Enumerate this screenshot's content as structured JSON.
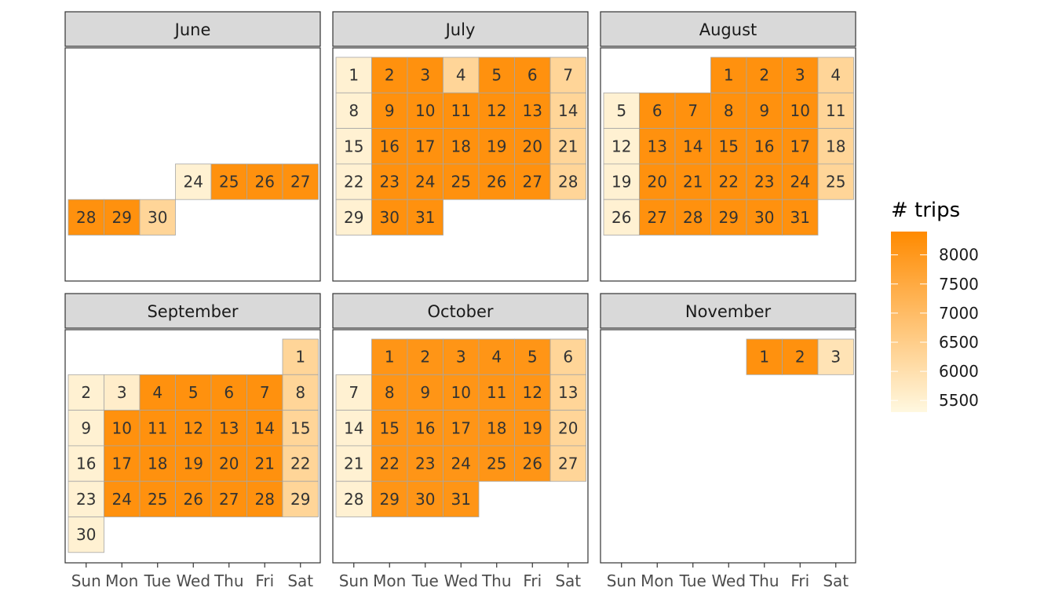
{
  "chart_data": {
    "type": "heatmap",
    "legend": {
      "title": "# trips",
      "ticks": [
        8000,
        7500,
        7000,
        6500,
        6000,
        5500
      ],
      "range": [
        5300,
        8400
      ],
      "colors": [
        "#FFF8E0",
        "#FF8A00"
      ],
      "position": "right"
    },
    "weekdays": [
      "Sun",
      "Mon",
      "Tue",
      "Wed",
      "Thu",
      "Fri",
      "Sat"
    ],
    "months": [
      {
        "name": "June",
        "first_weekday": 1,
        "days": [
          {
            "day": 24,
            "trips": 5500
          },
          {
            "day": 25,
            "trips": 8200
          },
          {
            "day": 26,
            "trips": 8200
          },
          {
            "day": 27,
            "trips": 8200
          },
          {
            "day": 28,
            "trips": 8200
          },
          {
            "day": 29,
            "trips": 8200
          },
          {
            "day": 30,
            "trips": 6300
          }
        ]
      },
      {
        "name": "July",
        "first_weekday": 0,
        "days": [
          {
            "day": 1,
            "trips": 5500
          },
          {
            "day": 2,
            "trips": 8200
          },
          {
            "day": 3,
            "trips": 8200
          },
          {
            "day": 4,
            "trips": 6300
          },
          {
            "day": 5,
            "trips": 8200
          },
          {
            "day": 6,
            "trips": 8200
          },
          {
            "day": 7,
            "trips": 6300
          },
          {
            "day": 8,
            "trips": 5500
          },
          {
            "day": 9,
            "trips": 8200
          },
          {
            "day": 10,
            "trips": 8200
          },
          {
            "day": 11,
            "trips": 8200
          },
          {
            "day": 12,
            "trips": 8200
          },
          {
            "day": 13,
            "trips": 8200
          },
          {
            "day": 14,
            "trips": 6300
          },
          {
            "day": 15,
            "trips": 5500
          },
          {
            "day": 16,
            "trips": 8200
          },
          {
            "day": 17,
            "trips": 8200
          },
          {
            "day": 18,
            "trips": 8200
          },
          {
            "day": 19,
            "trips": 8200
          },
          {
            "day": 20,
            "trips": 8200
          },
          {
            "day": 21,
            "trips": 6300
          },
          {
            "day": 22,
            "trips": 5500
          },
          {
            "day": 23,
            "trips": 8200
          },
          {
            "day": 24,
            "trips": 8200
          },
          {
            "day": 25,
            "trips": 8200
          },
          {
            "day": 26,
            "trips": 8200
          },
          {
            "day": 27,
            "trips": 8200
          },
          {
            "day": 28,
            "trips": 6300
          },
          {
            "day": 29,
            "trips": 5500
          },
          {
            "day": 30,
            "trips": 8200
          },
          {
            "day": 31,
            "trips": 8200
          }
        ]
      },
      {
        "name": "August",
        "first_weekday": 3,
        "days": [
          {
            "day": 1,
            "trips": 8200
          },
          {
            "day": 2,
            "trips": 8200
          },
          {
            "day": 3,
            "trips": 8200
          },
          {
            "day": 4,
            "trips": 6300
          },
          {
            "day": 5,
            "trips": 5500
          },
          {
            "day": 6,
            "trips": 8200
          },
          {
            "day": 7,
            "trips": 8200
          },
          {
            "day": 8,
            "trips": 8200
          },
          {
            "day": 9,
            "trips": 8200
          },
          {
            "day": 10,
            "trips": 8200
          },
          {
            "day": 11,
            "trips": 6300
          },
          {
            "day": 12,
            "trips": 5500
          },
          {
            "day": 13,
            "trips": 8200
          },
          {
            "day": 14,
            "trips": 8200
          },
          {
            "day": 15,
            "trips": 8200
          },
          {
            "day": 16,
            "trips": 8200
          },
          {
            "day": 17,
            "trips": 8200
          },
          {
            "day": 18,
            "trips": 6300
          },
          {
            "day": 19,
            "trips": 5500
          },
          {
            "day": 20,
            "trips": 8200
          },
          {
            "day": 21,
            "trips": 8200
          },
          {
            "day": 22,
            "trips": 8200
          },
          {
            "day": 23,
            "trips": 8200
          },
          {
            "day": 24,
            "trips": 8200
          },
          {
            "day": 25,
            "trips": 6300
          },
          {
            "day": 26,
            "trips": 5500
          },
          {
            "day": 27,
            "trips": 8200
          },
          {
            "day": 28,
            "trips": 8200
          },
          {
            "day": 29,
            "trips": 8200
          },
          {
            "day": 30,
            "trips": 8200
          },
          {
            "day": 31,
            "trips": 8200
          }
        ]
      },
      {
        "name": "September",
        "first_weekday": 6,
        "days": [
          {
            "day": 1,
            "trips": 6300
          },
          {
            "day": 2,
            "trips": 5500
          },
          {
            "day": 3,
            "trips": 5600
          },
          {
            "day": 4,
            "trips": 8200
          },
          {
            "day": 5,
            "trips": 8200
          },
          {
            "day": 6,
            "trips": 8200
          },
          {
            "day": 7,
            "trips": 8200
          },
          {
            "day": 8,
            "trips": 6300
          },
          {
            "day": 9,
            "trips": 5500
          },
          {
            "day": 10,
            "trips": 8200
          },
          {
            "day": 11,
            "trips": 8200
          },
          {
            "day": 12,
            "trips": 8200
          },
          {
            "day": 13,
            "trips": 8200
          },
          {
            "day": 14,
            "trips": 8200
          },
          {
            "day": 15,
            "trips": 6300
          },
          {
            "day": 16,
            "trips": 5500
          },
          {
            "day": 17,
            "trips": 8200
          },
          {
            "day": 18,
            "trips": 8200
          },
          {
            "day": 19,
            "trips": 8200
          },
          {
            "day": 20,
            "trips": 8200
          },
          {
            "day": 21,
            "trips": 8200
          },
          {
            "day": 22,
            "trips": 6300
          },
          {
            "day": 23,
            "trips": 5500
          },
          {
            "day": 24,
            "trips": 8200
          },
          {
            "day": 25,
            "trips": 8200
          },
          {
            "day": 26,
            "trips": 8200
          },
          {
            "day": 27,
            "trips": 8200
          },
          {
            "day": 28,
            "trips": 8200
          },
          {
            "day": 29,
            "trips": 6300
          },
          {
            "day": 30,
            "trips": 5500
          }
        ]
      },
      {
        "name": "October",
        "first_weekday": 1,
        "days": [
          {
            "day": 1,
            "trips": 8100
          },
          {
            "day": 2,
            "trips": 8100
          },
          {
            "day": 3,
            "trips": 8100
          },
          {
            "day": 4,
            "trips": 8100
          },
          {
            "day": 5,
            "trips": 8100
          },
          {
            "day": 6,
            "trips": 6300
          },
          {
            "day": 7,
            "trips": 5500
          },
          {
            "day": 8,
            "trips": 8100
          },
          {
            "day": 9,
            "trips": 8100
          },
          {
            "day": 10,
            "trips": 8100
          },
          {
            "day": 11,
            "trips": 8100
          },
          {
            "day": 12,
            "trips": 8100
          },
          {
            "day": 13,
            "trips": 6300
          },
          {
            "day": 14,
            "trips": 5500
          },
          {
            "day": 15,
            "trips": 8100
          },
          {
            "day": 16,
            "trips": 8100
          },
          {
            "day": 17,
            "trips": 8100
          },
          {
            "day": 18,
            "trips": 8100
          },
          {
            "day": 19,
            "trips": 8100
          },
          {
            "day": 20,
            "trips": 6300
          },
          {
            "day": 21,
            "trips": 5500
          },
          {
            "day": 22,
            "trips": 8100
          },
          {
            "day": 23,
            "trips": 8100
          },
          {
            "day": 24,
            "trips": 8100
          },
          {
            "day": 25,
            "trips": 8100
          },
          {
            "day": 26,
            "trips": 8100
          },
          {
            "day": 27,
            "trips": 6300
          },
          {
            "day": 28,
            "trips": 5500
          },
          {
            "day": 29,
            "trips": 8100
          },
          {
            "day": 30,
            "trips": 8100
          },
          {
            "day": 31,
            "trips": 8100
          }
        ]
      },
      {
        "name": "November",
        "first_weekday": 4,
        "days": [
          {
            "day": 1,
            "trips": 8200
          },
          {
            "day": 2,
            "trips": 8200
          },
          {
            "day": 3,
            "trips": 5900
          }
        ]
      }
    ]
  }
}
